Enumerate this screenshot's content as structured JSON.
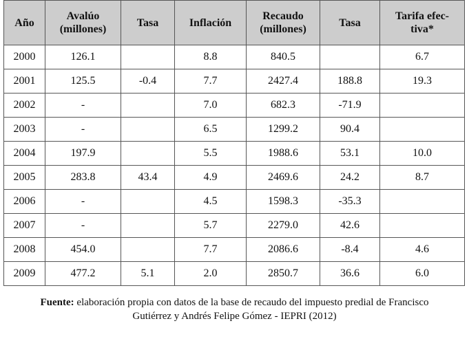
{
  "table": {
    "headers": [
      "Año",
      "Avalúo (millones)",
      "Tasa",
      "Inflación",
      "Recaudo (millones)",
      "Tasa",
      "Tarifa efec-tiva*"
    ],
    "header_lines": [
      [
        "Año"
      ],
      [
        "Avalúo",
        "(millones)"
      ],
      [
        "Tasa"
      ],
      [
        "Inflación"
      ],
      [
        "Recaudo",
        "(millones)"
      ],
      [
        "Tasa"
      ],
      [
        "Tarifa efec-",
        "tiva*"
      ]
    ],
    "rows": [
      [
        "2000",
        "126.1",
        "",
        "8.8",
        "840.5",
        "",
        "6.7"
      ],
      [
        "2001",
        "125.5",
        "-0.4",
        "7.7",
        "2427.4",
        "188.8",
        "19.3"
      ],
      [
        "2002",
        "-",
        "",
        "7.0",
        "682.3",
        "-71.9",
        ""
      ],
      [
        "2003",
        "-",
        "",
        "6.5",
        "1299.2",
        "90.4",
        ""
      ],
      [
        "2004",
        "197.9",
        "",
        "5.5",
        "1988.6",
        "53.1",
        "10.0"
      ],
      [
        "2005",
        "283.8",
        "43.4",
        "4.9",
        "2469.6",
        "24.2",
        "8.7"
      ],
      [
        "2006",
        "-",
        "",
        "4.5",
        "1598.3",
        "-35.3",
        ""
      ],
      [
        "2007",
        "-",
        "",
        "5.7",
        "2279.0",
        "42.6",
        ""
      ],
      [
        "2008",
        "454.0",
        "",
        "7.7",
        "2086.6",
        "-8.4",
        "4.6"
      ],
      [
        "2009",
        "477.2",
        "5.1",
        "2.0",
        "2850.7",
        "36.6",
        "6.0"
      ]
    ]
  },
  "source": {
    "label": "Fuente:",
    "line1": " elaboración propia con datos de la base de recaudo del impuesto predial de Francisco",
    "line2": "Gutiérrez y Andrés Felipe Gómez - IEPRI (2012)"
  }
}
